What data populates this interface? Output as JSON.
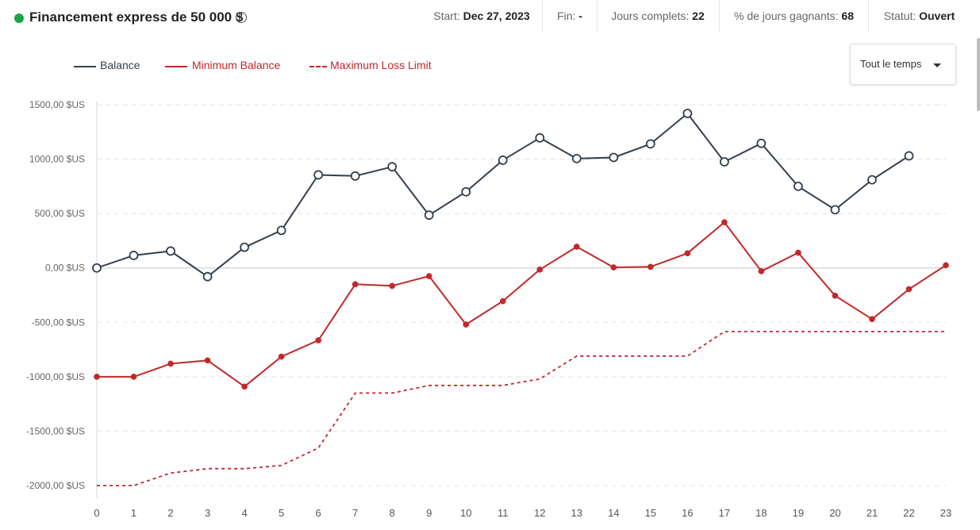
{
  "account": {
    "title": "Financement express de 50 000 $",
    "info_icon": "info-icon",
    "status_color": "#1aa34a"
  },
  "stats": {
    "start_label": "Start:",
    "start_value": "Dec 27, 2023",
    "end_label": "Fin:",
    "end_value": "-",
    "days_label": "Jours complets:",
    "days_value": "22",
    "win_label": "% de jours gagnants:",
    "win_value": "68",
    "status_label": "Statut:",
    "status_value": "Ouvert"
  },
  "range_select": {
    "label": "Tout le temps",
    "icon": "caret-down-icon"
  },
  "chart_data": {
    "type": "line",
    "x": [
      0,
      1,
      2,
      3,
      4,
      5,
      6,
      7,
      8,
      9,
      10,
      11,
      12,
      13,
      14,
      15,
      16,
      17,
      18,
      19,
      20,
      21,
      22,
      23
    ],
    "ylim": [
      -2000,
      1500
    ],
    "yticks": [
      -2000,
      -1500,
      -1000,
      -500,
      0,
      500,
      1000,
      1500
    ],
    "ytick_labels": [
      "-2000,00 $US",
      "-1500,00 $US",
      "-1000,00 $US",
      "-500,00 $US",
      "0,00 $US",
      "500,00 $US",
      "1000,00 $US",
      "1500,00 $US"
    ],
    "grid": true,
    "legend_position": "top-left",
    "series": [
      {
        "name": "Balance",
        "color": "#343f4d",
        "style": "solid",
        "marker": "hollow-circle",
        "values": [
          0,
          115,
          155,
          -80,
          190,
          345,
          855,
          845,
          930,
          485,
          700,
          990,
          1195,
          1005,
          1015,
          1140,
          1420,
          975,
          1145,
          750,
          535,
          810,
          1030,
          null
        ]
      },
      {
        "name": "Minimum Balance",
        "color": "#c2282b",
        "style": "solid",
        "marker": "filled-circle",
        "values": [
          -1000,
          -1000,
          -880,
          -850,
          -1090,
          -815,
          -665,
          -150,
          -165,
          -75,
          -520,
          -305,
          -15,
          195,
          5,
          10,
          135,
          420,
          -30,
          140,
          -255,
          -470,
          -195,
          25
        ]
      },
      {
        "name": "Maximum Loss Limit",
        "color": "#c2282b",
        "style": "dashed",
        "marker": "none",
        "values": [
          -2000,
          -2000,
          -1885,
          -1845,
          -1845,
          -1815,
          -1655,
          -1150,
          -1150,
          -1080,
          -1080,
          -1080,
          -1020,
          -810,
          -810,
          -810,
          -810,
          -585,
          -585,
          -585,
          -585,
          -585,
          -585,
          -585
        ]
      }
    ]
  }
}
